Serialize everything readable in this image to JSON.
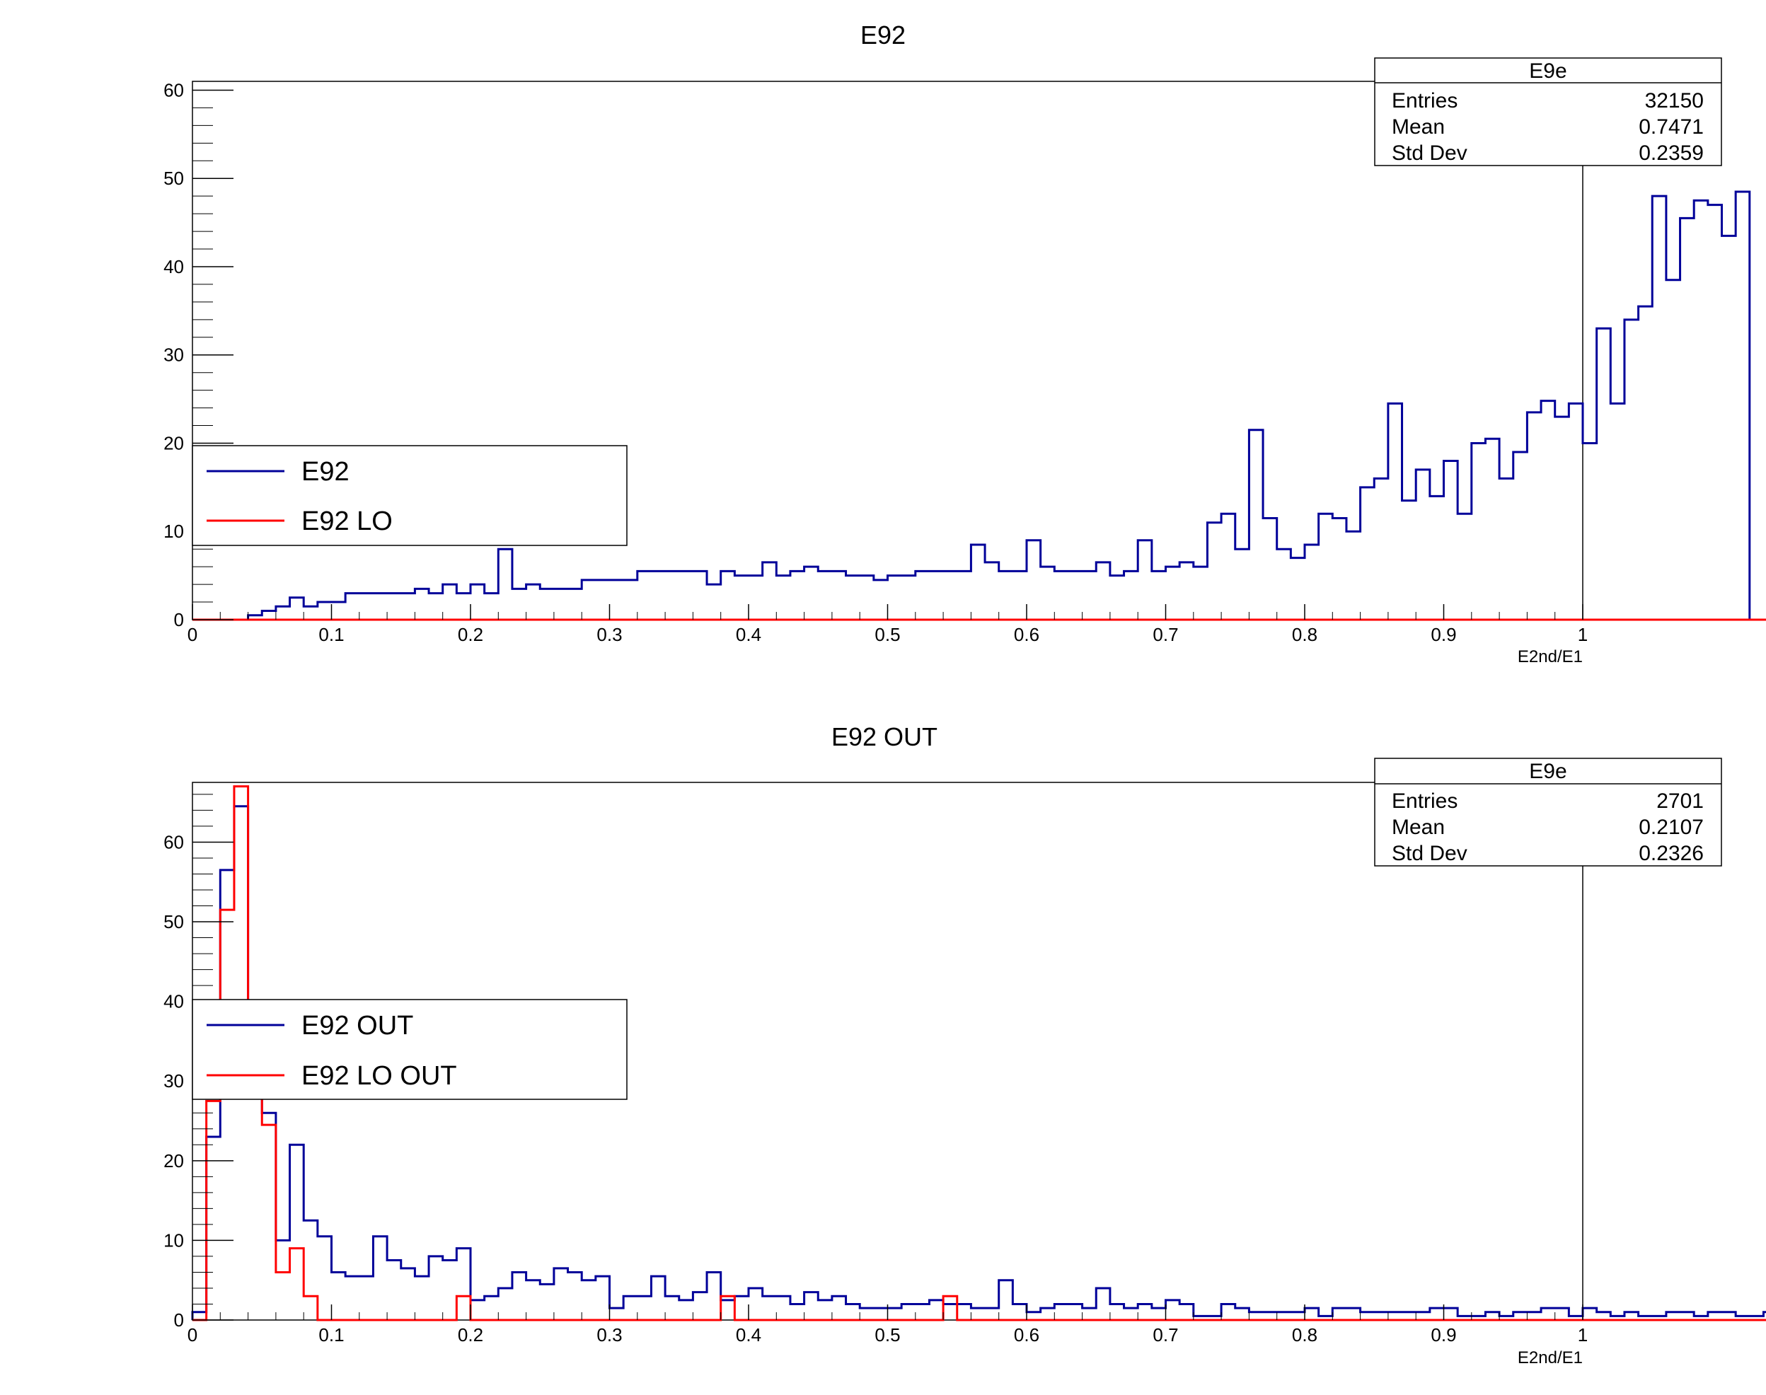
{
  "colors": {
    "blue": "#000099",
    "red": "#ff0000",
    "axis": "#000000"
  },
  "chart_data": [
    {
      "type": "histogram",
      "title": "E92",
      "xlabel": "E2nd/E1",
      "ylabel": "",
      "xlim": [
        0,
        1
      ],
      "ylim": [
        0,
        61
      ],
      "x_ticks": [
        "0",
        "0.1",
        "0.2",
        "0.3",
        "0.4",
        "0.5",
        "0.6",
        "0.7",
        "0.8",
        "0.9",
        "1"
      ],
      "y_ticks": [
        "0",
        "10",
        "20",
        "30",
        "40",
        "50",
        "60"
      ],
      "bin_width": 0.01,
      "legend": {
        "position": "middle-left",
        "entries": [
          "E92",
          "E92 LO"
        ]
      },
      "stats_box": {
        "title": "E9e",
        "rows": [
          {
            "label": "Entries",
            "value": "32150"
          },
          {
            "label": "Mean",
            "value": "0.7471"
          },
          {
            "label": "Std Dev",
            "value": "0.2359"
          }
        ]
      },
      "series": [
        {
          "name": "E92",
          "color": "#000099",
          "values": [
            0,
            0,
            0,
            0,
            0.5,
            1,
            1.5,
            2.5,
            1.5,
            2,
            2,
            3,
            3,
            3,
            3,
            3,
            3.5,
            3,
            4,
            3,
            4,
            3,
            8,
            3.5,
            4,
            3.5,
            3.5,
            3.5,
            4.5,
            4.5,
            4.5,
            4.5,
            5.5,
            5.5,
            5.5,
            5.5,
            5.5,
            4,
            5.5,
            5,
            5,
            6.5,
            5,
            5.5,
            6,
            5.5,
            5.5,
            5,
            5,
            4.5,
            5,
            5,
            5.5,
            5.5,
            5.5,
            5.5,
            8.5,
            6.5,
            5.5,
            5.5,
            9,
            6,
            5.5,
            5.5,
            5.5,
            6.5,
            5,
            5.5,
            9,
            5.5,
            6,
            6.5,
            6,
            11,
            12,
            8,
            21.5,
            11.5,
            8,
            7,
            8.5,
            12,
            11.5,
            10,
            15,
            16,
            24.5,
            13.5,
            17,
            14,
            18,
            12,
            20,
            20.5,
            16,
            19,
            23.5,
            24.8,
            23,
            24.5,
            20,
            33,
            24.5,
            34,
            35.5,
            48,
            38.5,
            45.5,
            47.5,
            47,
            43.5,
            48.5
          ]
        },
        {
          "name": "E92 LO",
          "color": "#ff0000",
          "values": [
            0,
            0,
            0,
            0,
            0,
            0,
            0,
            0,
            0,
            0,
            0,
            0,
            0,
            0,
            0,
            0,
            0,
            0,
            0,
            0,
            0,
            0,
            0,
            0,
            0,
            0,
            0,
            0,
            0,
            0,
            0,
            0,
            0,
            0,
            0,
            0,
            0,
            0,
            0,
            0,
            0,
            0,
            0,
            0,
            0,
            0,
            0,
            0,
            0,
            0,
            0,
            0,
            0,
            0,
            0,
            0,
            0,
            0,
            0,
            0,
            0,
            0,
            0,
            0,
            0,
            0,
            0,
            0,
            0,
            0,
            0,
            0,
            0,
            0,
            0,
            0,
            0,
            0,
            0,
            0,
            0,
            0,
            0,
            0,
            0,
            0,
            0,
            0,
            0,
            0,
            0,
            0,
            0,
            0,
            0,
            0,
            0,
            0,
            0,
            0,
            0,
            0,
            0,
            0,
            0,
            0,
            0,
            0,
            0,
            0,
            0,
            0,
            0,
            0,
            0,
            0,
            0,
            0,
            0,
            0,
            0,
            0,
            0,
            0
          ]
        }
      ]
    },
    {
      "type": "histogram",
      "title": "E92 OUT",
      "xlabel": "E2nd/E1",
      "ylabel": "",
      "xlim": [
        0,
        1
      ],
      "ylim": [
        0,
        67.5
      ],
      "x_ticks": [
        "0",
        "0.1",
        "0.2",
        "0.3",
        "0.4",
        "0.5",
        "0.6",
        "0.7",
        "0.8",
        "0.9",
        "1"
      ],
      "y_ticks": [
        "0",
        "10",
        "20",
        "30",
        "40",
        "50",
        "60"
      ],
      "bin_width": 0.01,
      "legend": {
        "position": "middle-left",
        "entries": [
          "E92 OUT",
          "E92 LO OUT"
        ]
      },
      "stats_box": {
        "title": "E9e",
        "rows": [
          {
            "label": "Entries",
            "value": "2701"
          },
          {
            "label": "Mean",
            "value": "0.2107"
          },
          {
            "label": "Std Dev",
            "value": "0.2326"
          }
        ]
      },
      "series": [
        {
          "name": "E92 OUT",
          "color": "#000099",
          "values": [
            1,
            23,
            56.5,
            64.5,
            31.5,
            26,
            10,
            22,
            12.5,
            10.5,
            6,
            5.5,
            5.5,
            10.5,
            7.5,
            6.5,
            5.5,
            8,
            7.5,
            9,
            2.5,
            3,
            4,
            6,
            5,
            4.5,
            6.5,
            6,
            5,
            5.5,
            1.5,
            3,
            3,
            5.5,
            3,
            2.5,
            3.5,
            6,
            2.5,
            3,
            4,
            3,
            3,
            2,
            3.5,
            2.5,
            3,
            2,
            1.5,
            1.5,
            1.5,
            2,
            2,
            2.5,
            2,
            2,
            1.5,
            1.5,
            5,
            2,
            1,
            1.5,
            2,
            2,
            1.5,
            4,
            2,
            1.5,
            2,
            1.5,
            2.5,
            2,
            0.5,
            0.5,
            2,
            1.5,
            1,
            1,
            1,
            1,
            1.5,
            0.5,
            1.5,
            1.5,
            1,
            1,
            1,
            1,
            1,
            1.5,
            1.5,
            0.5,
            0.5,
            1,
            0.5,
            1,
            1,
            1.5,
            1.5,
            0.5,
            1.5,
            1,
            0.5,
            1,
            0.5,
            0.5,
            1,
            1,
            0.5,
            1,
            1,
            0.5,
            0.5,
            1,
            1.5,
            1,
            0.5,
            1,
            0.5,
            0.5,
            0.5,
            0.5,
            0.5,
            1
          ]
        },
        {
          "name": "E92 LO OUT",
          "color": "#ff0000",
          "values": [
            0,
            27.5,
            51.5,
            67,
            30,
            24.5,
            6,
            9,
            3,
            0,
            0,
            0,
            0,
            0,
            0,
            0,
            0,
            0,
            0,
            3,
            0,
            0,
            0,
            0,
            0,
            0,
            0,
            0,
            0,
            0,
            0,
            0,
            0,
            0,
            0,
            0,
            0,
            0,
            3,
            0,
            0,
            0,
            0,
            0,
            0,
            0,
            0,
            0,
            0,
            0,
            0,
            0,
            0,
            0,
            3,
            0,
            0,
            0,
            0,
            0,
            0,
            0,
            0,
            0,
            0,
            0,
            0,
            0,
            0,
            0,
            0,
            0,
            0,
            0,
            0,
            0,
            0,
            0,
            0,
            0,
            0,
            0,
            0,
            0,
            0,
            0,
            0,
            0,
            0,
            0,
            0,
            0,
            0,
            0,
            0,
            0,
            0,
            0,
            0,
            0,
            0,
            0,
            0,
            0,
            0,
            0,
            0,
            0,
            0,
            0,
            0,
            0,
            0,
            0,
            0,
            0,
            0,
            0,
            0,
            0,
            0,
            0,
            0
          ]
        }
      ]
    }
  ]
}
